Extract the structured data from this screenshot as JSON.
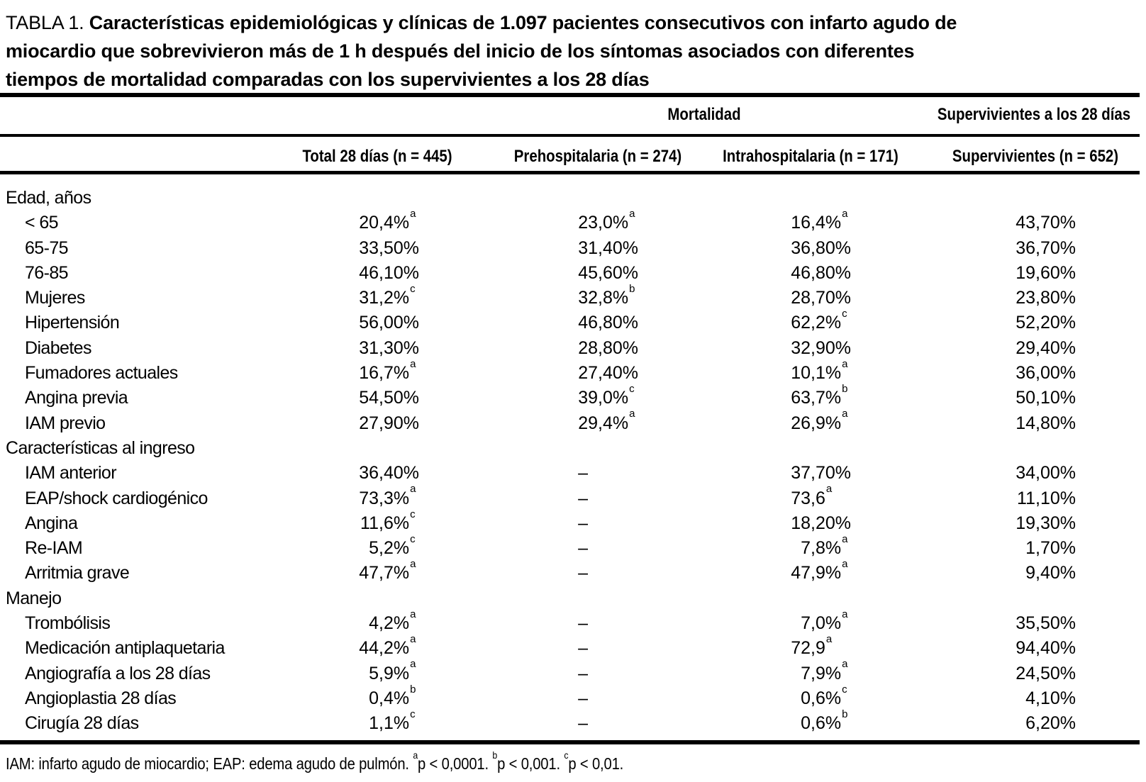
{
  "title": {
    "prefix": "TABLA 1.",
    "lines": [
      "Características epidemiológicas y clínicas de 1.097 pacientes consecutivos con infarto agudo de",
      "miocardio que sobrevivieron más de 1 h después del inicio de los síntomas asociados con diferentes",
      "tiempos de mortalidad comparadas con los supervivientes a los 28 días"
    ]
  },
  "table": {
    "group_headers": {
      "mortality": "Mortalidad",
      "survivors": "Supervivientes a los 28 días"
    },
    "columns": [
      "Total 28 días (n = 445)",
      "Prehospitalaria (n = 274)",
      "Intrahospitalaria (n = 171)",
      "Supervivientes (n = 652)"
    ],
    "rows": [
      {
        "label": "Edad, años",
        "section": true,
        "values": [
          "",
          "",
          "",
          ""
        ]
      },
      {
        "label": "< 65",
        "section": false,
        "values": [
          "20,4%^a",
          "23,0%^a",
          "16,4%^a",
          "43,70%"
        ]
      },
      {
        "label": "65-75",
        "section": false,
        "values": [
          "33,50%",
          "31,40%",
          "36,80%",
          "36,70%"
        ]
      },
      {
        "label": "76-85",
        "section": false,
        "values": [
          "46,10%",
          "45,60%",
          "46,80%",
          "19,60%"
        ]
      },
      {
        "label": "Mujeres",
        "section": false,
        "values": [
          "31,2%^c",
          "32,8%^b",
          "28,70%",
          "23,80%"
        ]
      },
      {
        "label": "Hipertensión",
        "section": false,
        "values": [
          "56,00%",
          "46,80%",
          "62,2%^c",
          "52,20%"
        ]
      },
      {
        "label": "Diabetes",
        "section": false,
        "values": [
          "31,30%",
          "28,80%",
          "32,90%",
          "29,40%"
        ]
      },
      {
        "label": "Fumadores actuales",
        "section": false,
        "values": [
          "16,7%^a",
          "27,40%",
          "10,1%^a",
          "36,00%"
        ]
      },
      {
        "label": "Angina previa",
        "section": false,
        "values": [
          "54,50%",
          "39,0%^c",
          "63,7%^b",
          "50,10%"
        ]
      },
      {
        "label": "IAM previo",
        "section": false,
        "values": [
          "27,90%",
          "29,4%^a",
          "26,9%^a",
          "14,80%"
        ]
      },
      {
        "label": "Características al ingreso",
        "section": true,
        "values": [
          "",
          "",
          "",
          ""
        ]
      },
      {
        "label": "IAM anterior",
        "section": false,
        "values": [
          "36,40%",
          "–",
          "37,70%",
          "34,00%"
        ]
      },
      {
        "label": "EAP/shock cardiogénico",
        "section": false,
        "values": [
          "73,3%^a",
          "–",
          "73,6^a",
          "11,10%"
        ]
      },
      {
        "label": "Angina",
        "section": false,
        "values": [
          "11,6%^c",
          "–",
          "18,20%",
          "19,30%"
        ]
      },
      {
        "label": "Re-IAM",
        "section": false,
        "values": [
          "5,2%^c",
          "–",
          "7,8%^a",
          "1,70%"
        ]
      },
      {
        "label": "Arritmia grave",
        "section": false,
        "values": [
          "47,7%^a",
          "–",
          "47,9%^a",
          "9,40%"
        ]
      },
      {
        "label": "Manejo",
        "section": true,
        "values": [
          "",
          "",
          "",
          ""
        ]
      },
      {
        "label": "Trombólisis",
        "section": false,
        "values": [
          "4,2%^a",
          "–",
          "7,0%^a",
          "35,50%"
        ]
      },
      {
        "label": "Medicación antiplaquetaria",
        "section": false,
        "values": [
          "44,2%^a",
          "–",
          "72,9^a",
          "94,40%"
        ]
      },
      {
        "label": "Angiografía a los 28 días",
        "section": false,
        "values": [
          "5,9%^a",
          "–",
          "7,9%^a",
          "24,50%"
        ]
      },
      {
        "label": "Angioplastia 28 días",
        "section": false,
        "values": [
          "0,4%^b",
          "–",
          "0,6%^c",
          "4,10%"
        ]
      },
      {
        "label": "Cirugía 28 días",
        "section": false,
        "values": [
          "1,1%^c",
          "–",
          "0,6%^b",
          "6,20%"
        ]
      }
    ]
  },
  "footnote": {
    "text": "IAM: infarto agudo de miocardio; EAP: edema agudo de pulmón.",
    "notes": [
      {
        "sup": "a",
        "text": "p < 0,0001."
      },
      {
        "sup": "b",
        "text": "p < 0,001."
      },
      {
        "sup": "c",
        "text": "p < 0,01."
      }
    ]
  }
}
